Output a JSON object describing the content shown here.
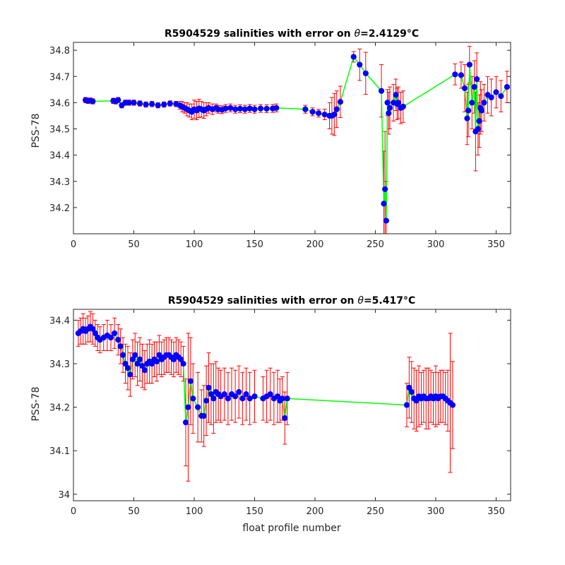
{
  "colors": {
    "errorbar": "#ff0000",
    "line": "#00ff00",
    "marker": "#0000ff",
    "axes": "#262626"
  },
  "chart_data": [
    {
      "type": "scatter",
      "title_prefix": "R5904529 salinities with error on ",
      "title_symbol": "θ",
      "title_value": "=2.4129",
      "title_unit": "°C",
      "xlabel": "",
      "ylabel": "PSS-78",
      "xlim": [
        0,
        362
      ],
      "ylim": [
        34.1,
        34.83
      ],
      "xticks": [
        0,
        50,
        100,
        150,
        200,
        250,
        300,
        350
      ],
      "yticks": [
        34.2,
        34.3,
        34.4,
        34.5,
        34.6,
        34.7,
        34.8
      ],
      "series": [
        {
          "x": [
            10,
            12,
            14,
            16,
            33,
            35,
            37,
            40,
            43,
            46,
            50,
            55,
            60,
            65,
            70,
            75,
            80,
            85,
            88,
            90,
            92,
            94,
            96,
            98,
            100,
            102,
            104,
            106,
            108,
            110,
            112,
            115,
            118,
            120,
            123,
            126,
            130,
            134,
            138,
            142,
            146,
            150,
            155,
            160,
            165,
            168,
            192,
            198,
            203,
            208,
            212,
            214,
            216,
            218,
            221,
            232,
            237,
            242,
            255,
            257,
            258,
            259,
            260,
            261,
            262,
            265,
            267,
            268,
            269,
            271,
            273,
            316,
            321,
            324,
            326,
            327,
            328,
            330,
            332,
            333,
            334,
            335,
            336,
            337,
            338,
            340,
            343,
            346,
            350,
            354,
            359
          ],
          "y": [
            34.61,
            34.607,
            34.608,
            34.605,
            34.607,
            34.605,
            34.61,
            34.59,
            34.6,
            34.6,
            34.6,
            34.597,
            34.593,
            34.595,
            34.59,
            34.593,
            34.597,
            34.595,
            34.59,
            34.585,
            34.58,
            34.575,
            34.57,
            34.565,
            34.575,
            34.57,
            34.578,
            34.575,
            34.57,
            34.575,
            34.58,
            34.575,
            34.58,
            34.575,
            34.573,
            34.578,
            34.58,
            34.575,
            34.577,
            34.575,
            34.578,
            34.575,
            34.578,
            34.577,
            34.578,
            34.58,
            34.575,
            34.565,
            34.56,
            34.555,
            34.55,
            34.55,
            34.555,
            34.575,
            34.603,
            34.775,
            34.745,
            34.712,
            34.645,
            34.215,
            34.27,
            34.15,
            34.6,
            34.56,
            34.58,
            34.6,
            34.63,
            34.595,
            34.6,
            34.58,
            34.585,
            34.708,
            34.705,
            34.655,
            34.54,
            34.57,
            34.745,
            34.6,
            34.66,
            34.49,
            34.69,
            34.5,
            34.53,
            34.58,
            34.57,
            34.6,
            34.63,
            34.62,
            34.64,
            34.625,
            34.66
          ],
          "err": [
            0.01,
            0.01,
            0.01,
            0.01,
            0.01,
            0.01,
            0.01,
            0.01,
            0.01,
            0.01,
            0.01,
            0.01,
            0.01,
            0.01,
            0.01,
            0.01,
            0.01,
            0.01,
            0.015,
            0.02,
            0.02,
            0.025,
            0.025,
            0.03,
            0.035,
            0.035,
            0.035,
            0.03,
            0.03,
            0.025,
            0.02,
            0.02,
            0.015,
            0.015,
            0.015,
            0.015,
            0.015,
            0.015,
            0.015,
            0.015,
            0.015,
            0.015,
            0.015,
            0.015,
            0.015,
            0.015,
            0.015,
            0.015,
            0.015,
            0.02,
            0.05,
            0.07,
            0.08,
            0.07,
            0.06,
            0.02,
            0.06,
            0.08,
            0.1,
            0.2,
            0.22,
            0.15,
            0.05,
            0.08,
            0.08,
            0.07,
            0.06,
            0.06,
            0.06,
            0.06,
            0.06,
            0.04,
            0.05,
            0.09,
            0.1,
            0.1,
            0.07,
            0.1,
            0.1,
            0.15,
            0.1,
            0.1,
            0.1,
            0.1,
            0.08,
            0.07,
            0.07,
            0.07,
            0.06,
            0.06,
            0.06
          ]
        }
      ]
    },
    {
      "type": "scatter",
      "title_prefix": "R5904529 salinities with error on ",
      "title_symbol": "θ",
      "title_value": "=5.417",
      "title_unit": "°C",
      "xlabel": "float profile number",
      "ylabel": "PSS-78",
      "xlim": [
        0,
        362
      ],
      "ylim": [
        33.985,
        34.425
      ],
      "xticks": [
        0,
        50,
        100,
        150,
        200,
        250,
        300,
        350
      ],
      "yticks": [
        34,
        34.1,
        34.2,
        34.3,
        34.4
      ],
      "series": [
        {
          "x": [
            4,
            6,
            8,
            10,
            12,
            14,
            16,
            18,
            20,
            22,
            25,
            28,
            31,
            34,
            37,
            39,
            41,
            43,
            45,
            47,
            49,
            51,
            53,
            55,
            57,
            59,
            61,
            63,
            65,
            67,
            69,
            71,
            73,
            75,
            77,
            79,
            81,
            83,
            85,
            87,
            89,
            91,
            93,
            95,
            97,
            99,
            103,
            106,
            108,
            110,
            112,
            114,
            116,
            118,
            120,
            122,
            125,
            128,
            131,
            134,
            137,
            140,
            143,
            146,
            150,
            157,
            160,
            163,
            166,
            169,
            171,
            173,
            175,
            177,
            276,
            278,
            280,
            282,
            284,
            286,
            288,
            290,
            292,
            294,
            296,
            298,
            300,
            302,
            304,
            306,
            308,
            310,
            312,
            314
          ],
          "y": [
            34.37,
            34.375,
            34.38,
            34.375,
            34.38,
            34.385,
            34.38,
            34.37,
            34.36,
            34.355,
            34.36,
            34.365,
            34.36,
            34.37,
            34.355,
            34.34,
            34.32,
            34.3,
            34.29,
            34.275,
            34.31,
            34.32,
            34.3,
            34.31,
            34.295,
            34.285,
            34.3,
            34.305,
            34.3,
            34.31,
            34.305,
            34.32,
            34.31,
            34.315,
            34.32,
            34.32,
            34.315,
            34.31,
            34.32,
            34.315,
            34.31,
            34.3,
            34.165,
            34.2,
            34.26,
            34.22,
            34.2,
            34.18,
            34.18,
            34.215,
            34.245,
            34.23,
            34.22,
            34.235,
            34.23,
            34.225,
            34.23,
            34.22,
            34.23,
            34.225,
            34.235,
            34.22,
            34.23,
            34.22,
            34.225,
            34.22,
            34.225,
            34.23,
            34.22,
            34.225,
            34.215,
            34.22,
            34.175,
            34.22,
            34.205,
            34.245,
            34.235,
            34.22,
            34.215,
            34.225,
            34.22,
            34.225,
            34.22,
            34.22,
            34.225,
            34.22,
            34.225,
            34.22,
            34.225,
            34.225,
            34.22,
            34.215,
            34.21,
            34.205
          ],
          "err": [
            0.03,
            0.03,
            0.035,
            0.03,
            0.03,
            0.035,
            0.035,
            0.03,
            0.03,
            0.03,
            0.03,
            0.035,
            0.03,
            0.035,
            0.035,
            0.04,
            0.04,
            0.045,
            0.05,
            0.05,
            0.045,
            0.05,
            0.05,
            0.05,
            0.05,
            0.045,
            0.045,
            0.05,
            0.045,
            0.04,
            0.045,
            0.045,
            0.04,
            0.04,
            0.04,
            0.04,
            0.04,
            0.04,
            0.04,
            0.04,
            0.04,
            0.04,
            0.1,
            0.17,
            0.1,
            0.08,
            0.08,
            0.06,
            0.07,
            0.08,
            0.08,
            0.07,
            0.08,
            0.07,
            0.06,
            0.06,
            0.06,
            0.06,
            0.06,
            0.06,
            0.06,
            0.06,
            0.06,
            0.06,
            0.06,
            0.05,
            0.06,
            0.06,
            0.06,
            0.06,
            0.05,
            0.05,
            0.06,
            0.06,
            0.05,
            0.07,
            0.07,
            0.07,
            0.07,
            0.07,
            0.06,
            0.06,
            0.07,
            0.07,
            0.06,
            0.06,
            0.07,
            0.06,
            0.06,
            0.06,
            0.06,
            0.07,
            0.16,
            0.1
          ]
        }
      ]
    }
  ]
}
